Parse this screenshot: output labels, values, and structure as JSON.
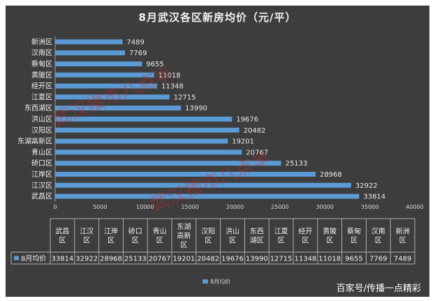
{
  "chart_data": {
    "type": "bar",
    "orientation": "horizontal",
    "title": "8月武汉各区新房均价（元/平）",
    "categories": [
      "武昌区",
      "江汉区",
      "江岸区",
      "硚口区",
      "青山区",
      "东湖高新区",
      "汉阳区",
      "洪山区",
      "东西湖区",
      "江夏区",
      "经开区",
      "黄陂区",
      "蔡甸区",
      "汉南区",
      "新洲区"
    ],
    "table_headers": [
      [
        "武昌",
        "区"
      ],
      [
        "江汉",
        "区"
      ],
      [
        "江岸",
        "区"
      ],
      [
        "硚口",
        "区"
      ],
      [
        "青山",
        "区"
      ],
      [
        "东湖",
        "高新",
        "区"
      ],
      [
        "汉阳",
        "区"
      ],
      [
        "洪山",
        "区"
      ],
      [
        "东西",
        "湖区"
      ],
      [
        "江夏",
        "区"
      ],
      [
        "经开",
        "区"
      ],
      [
        "黄陂",
        "区"
      ],
      [
        "蔡甸",
        "区"
      ],
      [
        "汉南",
        "区"
      ],
      [
        "新洲",
        "区"
      ]
    ],
    "series": [
      {
        "name": "8月均价",
        "values": [
          33814,
          32922,
          28968,
          25133,
          20767,
          19201,
          20482,
          19676,
          13990,
          12715,
          11348,
          11018,
          9655,
          7769,
          7489
        ]
      }
    ],
    "xlim": [
      0,
      40000
    ],
    "xticks": [
      0,
      5000,
      10000,
      15000,
      20000,
      25000,
      30000,
      35000,
      40000
    ],
    "legend": "bottom",
    "grid": false,
    "colors": {
      "bar": "#5b9bd5",
      "background": "#3d3d3d",
      "text": "#f0f0f0"
    }
  },
  "watermarks": [
    "武汉楼市八点半",
    "武汉楼市八点半"
  ],
  "credit": "百家号/传播一点精彩"
}
